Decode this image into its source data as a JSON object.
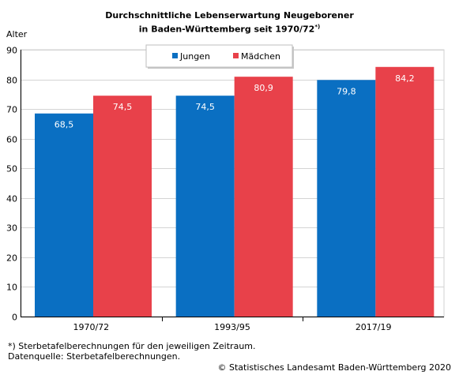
{
  "chart_data": {
    "type": "bar",
    "title_line1": "Durchschnittliche Lebenserwartung Neugeborener",
    "title_line2": "in Baden-Württemberg seit 1970/72",
    "title_note": "*)",
    "ylabel": "Alter",
    "xlabel": "",
    "ylim": [
      0,
      90
    ],
    "yticks": [
      0,
      10,
      20,
      30,
      40,
      50,
      60,
      70,
      80,
      90
    ],
    "grid": true,
    "legend_position": "top-center",
    "categories": [
      "1970/72",
      "1993/95",
      "2017/19"
    ],
    "series": [
      {
        "name": "Jungen",
        "color": "#0a6fc2",
        "values": [
          68.5,
          74.5,
          79.8
        ],
        "labels": [
          "68,5",
          "74,5",
          "79,8"
        ]
      },
      {
        "name": "Mädchen",
        "color": "#e8414a",
        "values": [
          74.5,
          80.9,
          84.2
        ],
        "labels": [
          "74,5",
          "80,9",
          "84,2"
        ]
      }
    ]
  },
  "footnotes": {
    "note": "*) Sterbetafelberechnungen für den jeweiligen Zeitraum.",
    "source": "Datenquelle: Sterbetafelberechnungen.",
    "copyright": "© Statistisches Landesamt Baden-Württemberg 2020"
  }
}
